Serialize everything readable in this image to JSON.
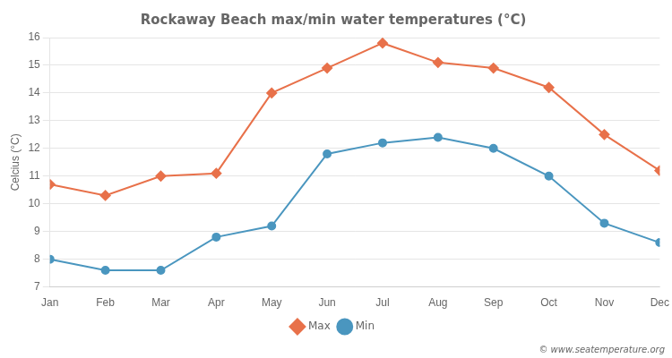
{
  "chart_data": {
    "type": "line",
    "title": "Rockaway Beach max/min water temperatures (°C)",
    "categories": [
      "Jan",
      "Feb",
      "Mar",
      "Apr",
      "May",
      "Jun",
      "Jul",
      "Aug",
      "Sep",
      "Oct",
      "Nov",
      "Dec"
    ],
    "series": [
      {
        "name": "Max",
        "color": "#e8714a",
        "marker": "diamond",
        "values": [
          10.7,
          10.3,
          11.0,
          11.1,
          14.0,
          14.9,
          15.8,
          15.1,
          14.9,
          14.2,
          12.5,
          11.2
        ]
      },
      {
        "name": "Min",
        "color": "#4a96bf",
        "marker": "circle",
        "values": [
          8.0,
          7.6,
          7.6,
          8.8,
          9.2,
          11.8,
          12.2,
          12.4,
          12.0,
          11.0,
          9.3,
          8.6
        ]
      }
    ],
    "ylabel": "Celcius (°C)",
    "ylim": [
      7,
      16
    ],
    "yticks": [
      7,
      8,
      9,
      10,
      11,
      12,
      13,
      14,
      15,
      16
    ],
    "grid": true,
    "legend": "bottom",
    "annotations": [
      "© www.seatemperature.org"
    ]
  }
}
